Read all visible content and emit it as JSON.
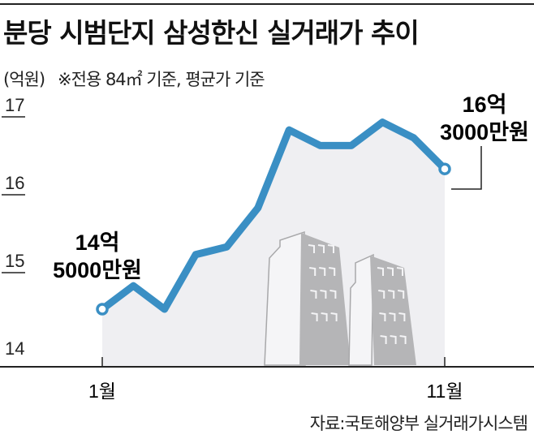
{
  "header": {
    "title": "분당 시범단지 삼성한신 실거래가 추이",
    "unit": "(억원)",
    "note": "※전용 84㎡ 기준, 평균가 기준"
  },
  "source": "자료:국토해양부 실거래가시스템",
  "colors": {
    "line": "#3a8fc4",
    "area": "#efeff2",
    "building": "#b5b5b7",
    "axis": "#222222"
  },
  "annotations": {
    "start": {
      "line1": "14억",
      "line2": "5000만원"
    },
    "end": {
      "line1": "16억",
      "line2": "3000만원"
    }
  },
  "chart_data": {
    "type": "line",
    "title": "분당 시범단지 삼성한신 실거래가 추이",
    "subtitle": "※전용 84㎡ 기준, 평균가 기준",
    "xlabel": "",
    "ylabel": "(억원)",
    "x_tick_labels": [
      "1월",
      "11월"
    ],
    "x": [
      1,
      2,
      3,
      4,
      5,
      6,
      7,
      8,
      9,
      10,
      11,
      12
    ],
    "series": [
      {
        "name": "실거래가",
        "values": [
          14.5,
          14.8,
          14.5,
          15.2,
          15.3,
          15.8,
          16.8,
          16.6,
          16.6,
          16.9,
          16.7,
          16.3
        ]
      }
    ],
    "yticks": [
      14,
      15,
      16,
      17
    ],
    "ylim": [
      14,
      17
    ],
    "grid": false,
    "legend": null,
    "annotations": [
      "14억 5000만원",
      "16억 3000만원"
    ],
    "source": "자료:국토해양부 실거래가시스템"
  }
}
